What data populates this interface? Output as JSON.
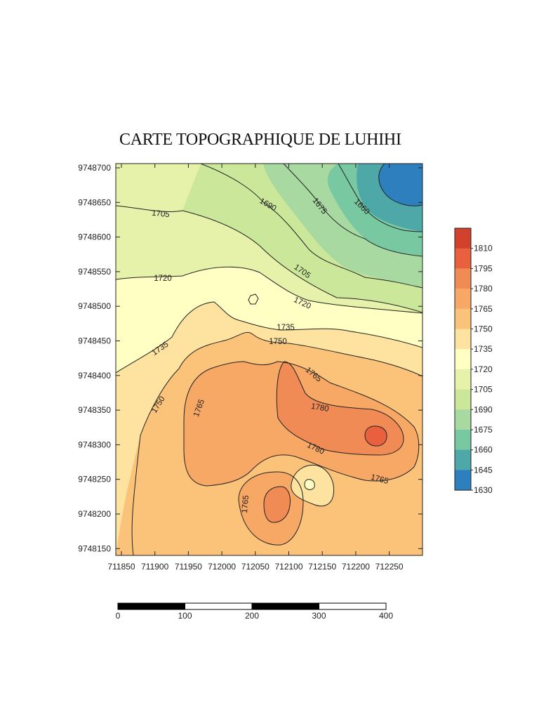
{
  "title": "CARTE TOPOGRAPHIQUE DE LUHIHI",
  "x_ticks": [
    "711850",
    "711900",
    "711950",
    "712000",
    "712050",
    "712100",
    "712150",
    "712200",
    "712250"
  ],
  "y_ticks": [
    "9748700",
    "9748650",
    "9748600",
    "9748550",
    "9748500",
    "9748450",
    "9748400",
    "9748350",
    "9748300",
    "9748250",
    "9748200",
    "9748150"
  ],
  "contour_labels": {
    "c1705a": "1705",
    "c1690": "1690",
    "c1675": "1675",
    "c1660": "1660",
    "c1720a": "1720",
    "c1705b": "1705",
    "c1720b": "1720",
    "c1735a": "1735",
    "c1750a": "1750",
    "c1735b": "1735",
    "c1765a": "1765",
    "c1780a": "1780",
    "c1750b": "1750",
    "c1765b": "1765",
    "c1780b": "1780",
    "c1765c": "1765",
    "c1765d": "1765"
  },
  "legend": {
    "levels": [
      "1810",
      "1795",
      "1780",
      "1765",
      "1750",
      "1735",
      "1720",
      "1705",
      "1690",
      "1675",
      "1660",
      "1645",
      "1630"
    ],
    "colors": [
      "#d2412b",
      "#e8603e",
      "#f18b55",
      "#f8a865",
      "#fbc37a",
      "#fde39f",
      "#ffffc4",
      "#e6f1aa",
      "#cbe79a",
      "#a7d9a0",
      "#78c8a2",
      "#4fa8a8",
      "#2e7fbd"
    ]
  },
  "scale_bar": {
    "labels": [
      "0",
      "100",
      "200",
      "300",
      "400"
    ]
  },
  "chart_data": {
    "type": "contour",
    "title": "CARTE TOPOGRAPHIQUE DE LUHIHI",
    "x_range": [
      711850,
      712300
    ],
    "y_range": [
      9748140,
      9748705
    ],
    "contour_levels": [
      1630,
      1645,
      1660,
      1675,
      1690,
      1705,
      1720,
      1735,
      1750,
      1765,
      1780,
      1795,
      1810
    ],
    "scale_bar_range": [
      0,
      400
    ]
  }
}
